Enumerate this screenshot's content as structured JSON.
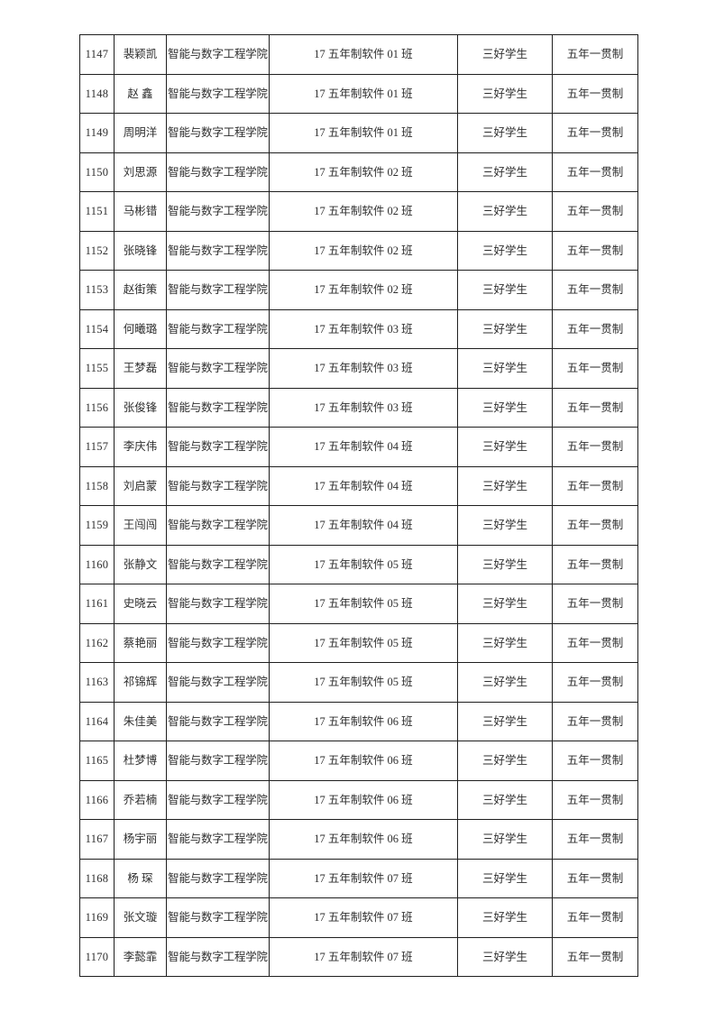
{
  "page": {
    "background_color": "#ffffff",
    "text_color": "#2e2e2e",
    "border_color": "#1f1f1f"
  },
  "table": {
    "rows": [
      {
        "id": "1147",
        "name": "裴颖凯",
        "college": "智能与数字工程学院",
        "class_name": "17 五年制软件 01 班",
        "award": "三好学生",
        "program": "五年一贯制"
      },
      {
        "id": "1148",
        "name": "赵 鑫",
        "college": "智能与数字工程学院",
        "class_name": "17 五年制软件 01 班",
        "award": "三好学生",
        "program": "五年一贯制"
      },
      {
        "id": "1149",
        "name": "周明洋",
        "college": "智能与数字工程学院",
        "class_name": "17 五年制软件 01 班",
        "award": "三好学生",
        "program": "五年一贯制"
      },
      {
        "id": "1150",
        "name": "刘思源",
        "college": "智能与数字工程学院",
        "class_name": "17 五年制软件 02 班",
        "award": "三好学生",
        "program": "五年一贯制"
      },
      {
        "id": "1151",
        "name": "马彬错",
        "college": "智能与数字工程学院",
        "class_name": "17 五年制软件 02 班",
        "award": "三好学生",
        "program": "五年一贯制"
      },
      {
        "id": "1152",
        "name": "张晓锋",
        "college": "智能与数字工程学院",
        "class_name": "17 五年制软件 02 班",
        "award": "三好学生",
        "program": "五年一贯制"
      },
      {
        "id": "1153",
        "name": "赵街策",
        "college": "智能与数字工程学院",
        "class_name": "17 五年制软件 02 班",
        "award": "三好学生",
        "program": "五年一贯制"
      },
      {
        "id": "1154",
        "name": "何曦璐",
        "college": "智能与数字工程学院",
        "class_name": "17 五年制软件 03 班",
        "award": "三好学生",
        "program": "五年一贯制"
      },
      {
        "id": "1155",
        "name": "王梦磊",
        "college": "智能与数字工程学院",
        "class_name": "17 五年制软件 03 班",
        "award": "三好学生",
        "program": "五年一贯制"
      },
      {
        "id": "1156",
        "name": "张俊锋",
        "college": "智能与数字工程学院",
        "class_name": "17 五年制软件 03 班",
        "award": "三好学生",
        "program": "五年一贯制"
      },
      {
        "id": "1157",
        "name": "李庆伟",
        "college": "智能与数字工程学院",
        "class_name": "17 五年制软件 04 班",
        "award": "三好学生",
        "program": "五年一贯制"
      },
      {
        "id": "1158",
        "name": "刘启蒙",
        "college": "智能与数字工程学院",
        "class_name": "17 五年制软件 04 班",
        "award": "三好学生",
        "program": "五年一贯制"
      },
      {
        "id": "1159",
        "name": "王闯闯",
        "college": "智能与数字工程学院",
        "class_name": "17 五年制软件 04 班",
        "award": "三好学生",
        "program": "五年一贯制"
      },
      {
        "id": "1160",
        "name": "张静文",
        "college": "智能与数字工程学院",
        "class_name": "17 五年制软件 05 班",
        "award": "三好学生",
        "program": "五年一贯制"
      },
      {
        "id": "1161",
        "name": "史晓云",
        "college": "智能与数字工程学院",
        "class_name": "17 五年制软件 05 班",
        "award": "三好学生",
        "program": "五年一贯制"
      },
      {
        "id": "1162",
        "name": "蔡艳丽",
        "college": "智能与数字工程学院",
        "class_name": "17 五年制软件 05 班",
        "award": "三好学生",
        "program": "五年一贯制"
      },
      {
        "id": "1163",
        "name": "祁锦辉",
        "college": "智能与数字工程学院",
        "class_name": "17 五年制软件 05 班",
        "award": "三好学生",
        "program": "五年一贯制"
      },
      {
        "id": "1164",
        "name": "朱佳美",
        "college": "智能与数字工程学院",
        "class_name": "17 五年制软件 06 班",
        "award": "三好学生",
        "program": "五年一贯制"
      },
      {
        "id": "1165",
        "name": "杜梦博",
        "college": "智能与数字工程学院",
        "class_name": "17 五年制软件 06 班",
        "award": "三好学生",
        "program": "五年一贯制"
      },
      {
        "id": "1166",
        "name": "乔若楠",
        "college": "智能与数字工程学院",
        "class_name": "17 五年制软件 06 班",
        "award": "三好学生",
        "program": "五年一贯制"
      },
      {
        "id": "1167",
        "name": "杨宇丽",
        "college": "智能与数字工程学院",
        "class_name": "17 五年制软件 06 班",
        "award": "三好学生",
        "program": "五年一贯制"
      },
      {
        "id": "1168",
        "name": "杨 琛",
        "college": "智能与数字工程学院",
        "class_name": "17 五年制软件 07 班",
        "award": "三好学生",
        "program": "五年一贯制"
      },
      {
        "id": "1169",
        "name": "张文璇",
        "college": "智能与数字工程学院",
        "class_name": "17 五年制软件 07 班",
        "award": "三好学生",
        "program": "五年一贯制"
      },
      {
        "id": "1170",
        "name": "李懿霏",
        "college": "智能与数字工程学院",
        "class_name": "17 五年制软件 07 班",
        "award": "三好学生",
        "program": "五年一贯制"
      }
    ]
  }
}
